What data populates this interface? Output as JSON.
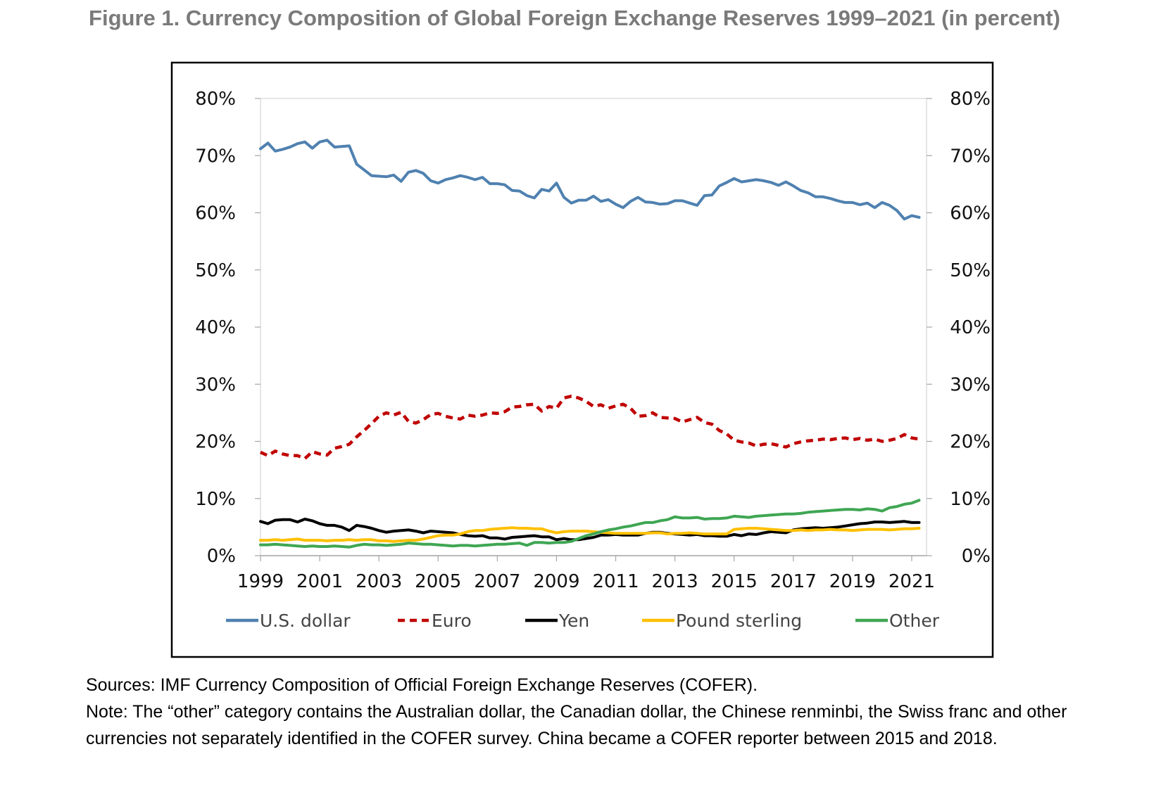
{
  "figure": {
    "title": "Figure 1. Currency Composition of Global Foreign Exchange Reserves 1999–2021 (in percent)",
    "sources": "Sources: IMF Currency Composition of Official Foreign Exchange Reserves (COFER).",
    "note": "Note: The “other” category contains the Australian dollar, the Canadian dollar, the Chinese renminbi, the Swiss franc and other currencies not separately identified in the COFER survey. China became a COFER reporter between 2015 and 2018."
  },
  "chart_data": {
    "type": "line",
    "title": "Figure 1. Currency Composition of Global Foreign Exchange Reserves 1999–2021 (in percent)",
    "xlabel": "",
    "ylabel": "",
    "x_start": 1999.0,
    "x_step": 0.25,
    "xlim": [
      1999.0,
      2021.5
    ],
    "x_ticks": [
      1999,
      2001,
      2003,
      2005,
      2007,
      2009,
      2011,
      2013,
      2015,
      2017,
      2019,
      2021
    ],
    "ylim": [
      0,
      80
    ],
    "y_ticks": [
      0,
      10,
      20,
      30,
      40,
      50,
      60,
      70,
      80
    ],
    "y_tick_labels": [
      "0%",
      "10%",
      "20%",
      "30%",
      "40%",
      "50%",
      "60%",
      "70%",
      "80%"
    ],
    "y_axis_right": true,
    "grid": false,
    "legend_position": "bottom",
    "series": [
      {
        "name": "U.S. dollar",
        "color": "#4f81b0",
        "dash": "solid",
        "values": [
          71.2,
          72.2,
          70.8,
          71.1,
          71.5,
          72.1,
          72.4,
          71.3,
          72.4,
          72.7,
          71.5,
          71.6,
          71.7,
          68.5,
          67.5,
          66.5,
          66.4,
          66.3,
          66.6,
          65.5,
          67.1,
          67.4,
          66.9,
          65.6,
          65.2,
          65.8,
          66.1,
          66.5,
          66.2,
          65.8,
          66.2,
          65.1,
          65.1,
          64.9,
          63.9,
          63.8,
          63.0,
          62.6,
          64.1,
          63.8,
          65.2,
          62.7,
          61.7,
          62.2,
          62.2,
          62.9,
          62.0,
          62.3,
          61.5,
          60.9,
          62.0,
          62.7,
          61.9,
          61.8,
          61.5,
          61.6,
          62.1,
          62.1,
          61.7,
          61.3,
          63.0,
          63.1,
          64.7,
          65.3,
          66.0,
          65.4,
          65.6,
          65.8,
          65.6,
          65.3,
          64.8,
          65.4,
          64.7,
          63.9,
          63.5,
          62.8,
          62.8,
          62.5,
          62.1,
          61.8,
          61.8,
          61.4,
          61.7,
          60.9,
          61.8,
          61.3,
          60.4,
          58.9,
          59.5,
          59.2
        ]
      },
      {
        "name": "Euro",
        "color": "#c00000",
        "dash": "dashed",
        "values": [
          18.1,
          17.5,
          18.3,
          17.8,
          17.5,
          17.5,
          17.0,
          18.2,
          17.8,
          17.6,
          18.8,
          19.1,
          19.5,
          20.8,
          21.9,
          23.1,
          24.4,
          25.0,
          24.6,
          25.1,
          23.5,
          23.2,
          23.8,
          24.7,
          24.9,
          24.4,
          24.1,
          23.9,
          24.6,
          24.4,
          24.6,
          25.0,
          24.9,
          25.2,
          26.0,
          26.1,
          26.4,
          26.5,
          25.3,
          26.1,
          25.8,
          27.6,
          27.9,
          27.6,
          27.0,
          26.1,
          26.4,
          25.8,
          26.2,
          26.5,
          25.8,
          24.4,
          24.5,
          25.0,
          24.2,
          24.1,
          24.0,
          23.4,
          23.8,
          24.2,
          23.3,
          23.0,
          21.9,
          21.3,
          20.2,
          19.9,
          19.7,
          19.2,
          19.5,
          19.6,
          19.3,
          19.0,
          19.6,
          19.9,
          20.1,
          20.2,
          20.4,
          20.3,
          20.5,
          20.6,
          20.3,
          20.5,
          20.2,
          20.4,
          20.0,
          20.2,
          20.5,
          21.2,
          20.6,
          20.4
        ]
      },
      {
        "name": "Yen",
        "color": "#000000",
        "dash": "solid",
        "values": [
          6.0,
          5.6,
          6.2,
          6.3,
          6.3,
          5.9,
          6.4,
          6.1,
          5.6,
          5.3,
          5.3,
          5.0,
          4.4,
          5.3,
          5.1,
          4.8,
          4.4,
          4.1,
          4.3,
          4.4,
          4.5,
          4.3,
          4.0,
          4.3,
          4.2,
          4.1,
          4.0,
          3.7,
          3.5,
          3.4,
          3.5,
          3.1,
          3.1,
          2.9,
          3.2,
          3.3,
          3.4,
          3.5,
          3.3,
          3.3,
          2.8,
          3.0,
          2.8,
          2.8,
          3.0,
          3.2,
          3.6,
          3.6,
          3.7,
          3.6,
          3.6,
          3.6,
          3.9,
          4.1,
          4.1,
          3.9,
          3.8,
          3.7,
          3.6,
          3.7,
          3.5,
          3.5,
          3.4,
          3.4,
          3.7,
          3.5,
          3.8,
          3.7,
          4.0,
          4.2,
          4.1,
          4.0,
          4.5,
          4.7,
          4.8,
          4.9,
          4.8,
          4.9,
          5.0,
          5.2,
          5.4,
          5.6,
          5.7,
          5.9,
          5.9,
          5.8,
          5.9,
          6.0,
          5.8,
          5.8
        ]
      },
      {
        "name": "Pound sterling",
        "color": "#ffc000",
        "dash": "solid",
        "values": [
          2.7,
          2.7,
          2.8,
          2.7,
          2.8,
          2.9,
          2.7,
          2.7,
          2.7,
          2.6,
          2.7,
          2.7,
          2.8,
          2.7,
          2.8,
          2.8,
          2.6,
          2.6,
          2.5,
          2.6,
          2.7,
          2.7,
          2.9,
          3.2,
          3.5,
          3.6,
          3.6,
          3.8,
          4.2,
          4.4,
          4.4,
          4.6,
          4.7,
          4.8,
          4.9,
          4.8,
          4.8,
          4.7,
          4.7,
          4.3,
          4.0,
          4.2,
          4.3,
          4.3,
          4.3,
          4.2,
          4.1,
          4.0,
          3.9,
          3.9,
          3.9,
          3.9,
          3.9,
          4.0,
          4.0,
          3.8,
          3.9,
          3.9,
          4.0,
          3.9,
          3.8,
          3.8,
          3.8,
          3.8,
          4.6,
          4.7,
          4.8,
          4.8,
          4.7,
          4.6,
          4.5,
          4.4,
          4.4,
          4.5,
          4.4,
          4.5,
          4.5,
          4.6,
          4.5,
          4.5,
          4.4,
          4.5,
          4.6,
          4.6,
          4.6,
          4.5,
          4.6,
          4.7,
          4.7,
          4.8
        ]
      },
      {
        "name": "Other",
        "color": "#3fa653",
        "dash": "solid",
        "values": [
          1.9,
          1.9,
          2.0,
          1.9,
          1.8,
          1.7,
          1.6,
          1.7,
          1.6,
          1.6,
          1.7,
          1.6,
          1.5,
          1.8,
          2.0,
          1.9,
          1.9,
          1.8,
          1.9,
          2.0,
          2.2,
          2.1,
          2.0,
          2.0,
          1.9,
          1.8,
          1.7,
          1.8,
          1.8,
          1.7,
          1.8,
          1.9,
          2.0,
          2.0,
          2.1,
          2.2,
          1.8,
          2.3,
          2.3,
          2.2,
          2.3,
          2.3,
          2.5,
          3.0,
          3.5,
          3.8,
          4.2,
          4.5,
          4.7,
          5.0,
          5.2,
          5.5,
          5.8,
          5.8,
          6.1,
          6.3,
          6.8,
          6.6,
          6.6,
          6.7,
          6.4,
          6.5,
          6.5,
          6.6,
          6.9,
          6.8,
          6.7,
          6.9,
          7.0,
          7.1,
          7.2,
          7.3,
          7.3,
          7.4,
          7.6,
          7.7,
          7.8,
          7.9,
          8.0,
          8.1,
          8.1,
          8.0,
          8.2,
          8.1,
          7.8,
          8.4,
          8.6,
          9.0,
          9.2,
          9.7
        ]
      }
    ]
  }
}
